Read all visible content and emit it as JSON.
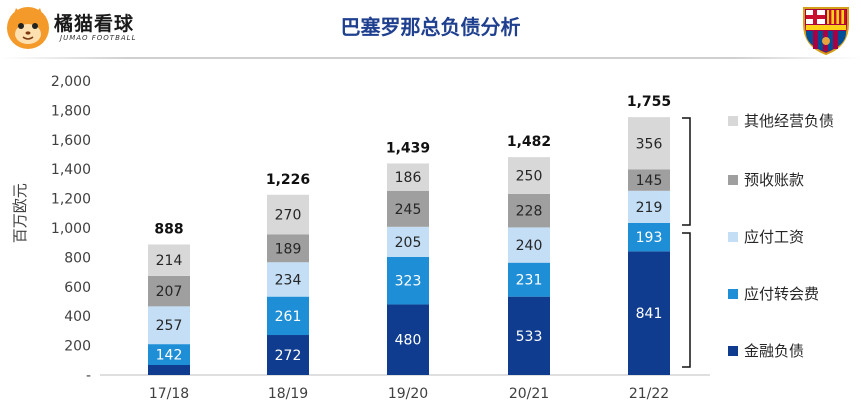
{
  "header": {
    "logo_name": "橘猫看球",
    "logo_sub": "JUMAO FOOTBALL",
    "title": "巴塞罗那总负债分析"
  },
  "chart_data": {
    "type": "bar",
    "stacked": true,
    "title": "巴塞罗那总负债分析",
    "ylabel": "百万欧元",
    "xlabel": "",
    "ylim": [
      0,
      2000
    ],
    "yticks": [
      "-",
      "200",
      "400",
      "600",
      "800",
      "1,000",
      "1,200",
      "1,400",
      "1,600",
      "1,800",
      "2,000"
    ],
    "grid": false,
    "legend_position": "right",
    "categories": [
      "17/18",
      "18/19",
      "19/20",
      "20/21",
      "21/22"
    ],
    "totals": [
      "888",
      "1,226",
      "1,439",
      "1,482",
      "1,755"
    ],
    "series": [
      {
        "name": "金融负债",
        "color": "#0f3c8f",
        "values": [
          68,
          272,
          480,
          533,
          841
        ],
        "labels": [
          "",
          "272",
          "480",
          "533",
          "841"
        ]
      },
      {
        "name": "应付转会费",
        "color": "#1e8fd6",
        "values": [
          142,
          261,
          323,
          231,
          193
        ],
        "labels": [
          "142",
          "261",
          "323",
          "231",
          "193"
        ]
      },
      {
        "name": "应付工资",
        "color": "#c3def5",
        "values": [
          257,
          234,
          205,
          240,
          219
        ],
        "labels": [
          "257",
          "234",
          "205",
          "240",
          "219"
        ]
      },
      {
        "name": "预收账款",
        "color": "#9f9f9f",
        "values": [
          207,
          189,
          245,
          228,
          145
        ],
        "labels": [
          "207",
          "189",
          "245",
          "228",
          "145"
        ]
      },
      {
        "name": "其他经营负债",
        "color": "#d8d8d8",
        "values": [
          214,
          270,
          186,
          250,
          356
        ],
        "labels": [
          "214",
          "270",
          "186",
          "250",
          "356"
        ]
      }
    ],
    "legend": [
      "其他经营负债",
      "预收账款",
      "应付工资",
      "应付转会费",
      "金融负债"
    ]
  }
}
